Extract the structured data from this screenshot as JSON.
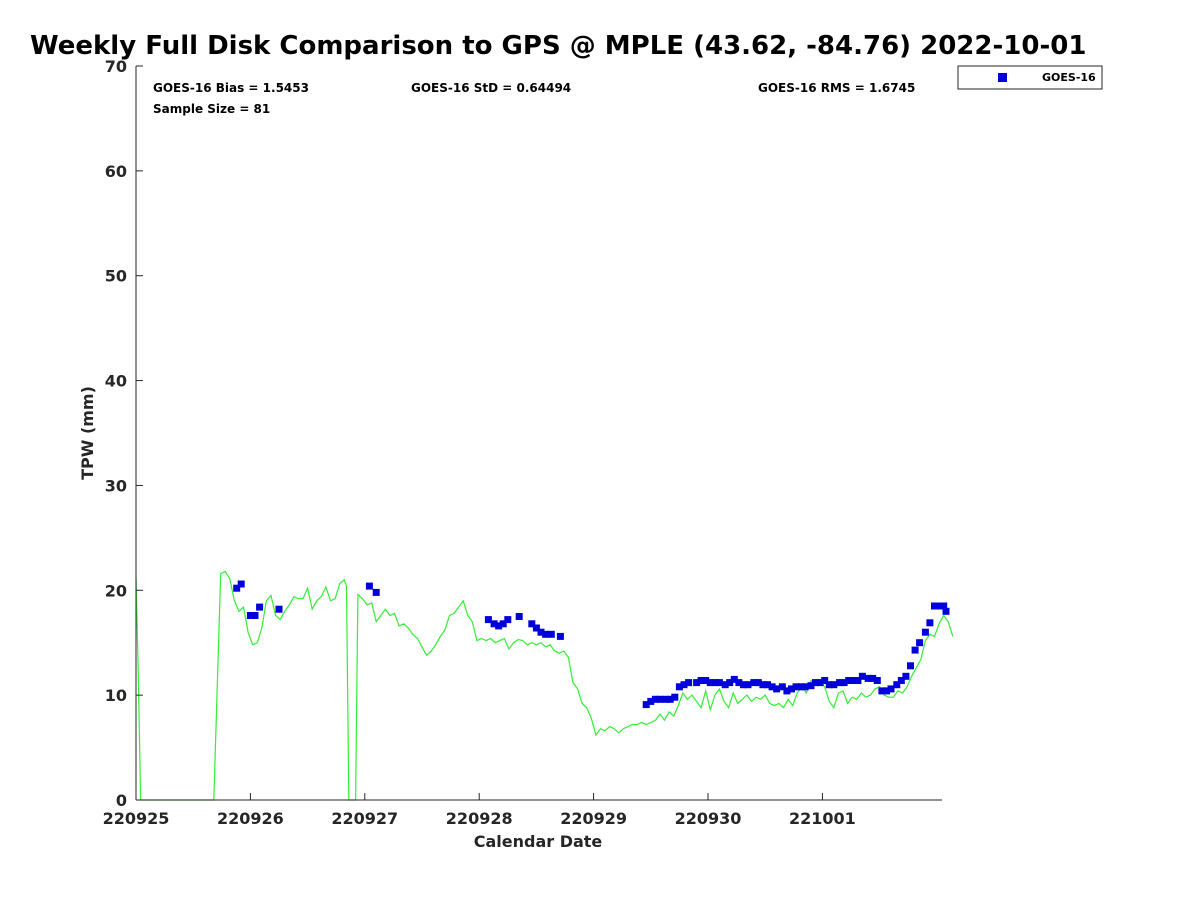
{
  "chart_data": {
    "type": "scatter",
    "title": "Weekly Full Disk Comparison to GPS @ MPLE (43.62, -84.76) 2022-10-01",
    "xlabel": "Calendar Date",
    "ylabel": "TPW (mm)",
    "xlim": [
      0,
      7
    ],
    "ylim": [
      0,
      70
    ],
    "x_tick_labels": [
      "220925",
      "220926",
      "220927",
      "220928",
      "220929",
      "220930",
      "221001"
    ],
    "y_ticks": [
      0,
      10,
      20,
      30,
      40,
      50,
      60,
      70
    ],
    "grid": false,
    "legend_position": "top-right, outside plot area",
    "stats": {
      "bias": "GOES-16 Bias = 1.5453",
      "std": "GOES-16 StD = 0.64494",
      "rms": "GOES-16 RMS = 1.6745",
      "sample": "Sample Size = 81"
    },
    "colors": {
      "goes": "#0000dd",
      "gps": "#33ee33",
      "axis": "#262626"
    },
    "series": [
      {
        "name": "GOES-16",
        "kind": "scatter",
        "marker": "square",
        "points": [
          [
            0.88,
            20.2
          ],
          [
            0.92,
            20.6
          ],
          [
            1.0,
            17.6
          ],
          [
            1.04,
            17.6
          ],
          [
            1.08,
            18.4
          ],
          [
            1.25,
            18.2
          ],
          [
            2.04,
            20.4
          ],
          [
            2.1,
            19.8
          ],
          [
            3.08,
            17.2
          ],
          [
            3.13,
            16.8
          ],
          [
            3.17,
            16.6
          ],
          [
            3.21,
            16.8
          ],
          [
            3.25,
            17.2
          ],
          [
            3.35,
            17.5
          ],
          [
            3.46,
            16.8
          ],
          [
            3.5,
            16.4
          ],
          [
            3.54,
            16.0
          ],
          [
            3.58,
            15.8
          ],
          [
            3.63,
            15.8
          ],
          [
            3.71,
            15.6
          ],
          [
            4.46,
            9.1
          ],
          [
            4.5,
            9.4
          ],
          [
            4.54,
            9.6
          ],
          [
            4.58,
            9.6
          ],
          [
            4.63,
            9.6
          ],
          [
            4.67,
            9.6
          ],
          [
            4.71,
            9.8
          ],
          [
            4.75,
            10.8
          ],
          [
            4.79,
            11.0
          ],
          [
            4.83,
            11.2
          ],
          [
            4.9,
            11.2
          ],
          [
            4.94,
            11.4
          ],
          [
            4.98,
            11.4
          ],
          [
            5.02,
            11.2
          ],
          [
            5.06,
            11.2
          ],
          [
            5.1,
            11.2
          ],
          [
            5.15,
            11.0
          ],
          [
            5.19,
            11.2
          ],
          [
            5.23,
            11.5
          ],
          [
            5.27,
            11.2
          ],
          [
            5.31,
            11.0
          ],
          [
            5.35,
            11.0
          ],
          [
            5.4,
            11.2
          ],
          [
            5.44,
            11.2
          ],
          [
            5.48,
            11.0
          ],
          [
            5.52,
            11.0
          ],
          [
            5.56,
            10.8
          ],
          [
            5.6,
            10.6
          ],
          [
            5.65,
            10.8
          ],
          [
            5.69,
            10.4
          ],
          [
            5.73,
            10.6
          ],
          [
            5.77,
            10.8
          ],
          [
            5.81,
            10.8
          ],
          [
            5.85,
            10.8
          ],
          [
            5.9,
            10.9
          ],
          [
            5.94,
            11.2
          ],
          [
            5.98,
            11.2
          ],
          [
            6.02,
            11.4
          ],
          [
            6.06,
            11.0
          ],
          [
            6.1,
            11.0
          ],
          [
            6.15,
            11.2
          ],
          [
            6.19,
            11.2
          ],
          [
            6.23,
            11.4
          ],
          [
            6.27,
            11.4
          ],
          [
            6.31,
            11.4
          ],
          [
            6.35,
            11.8
          ],
          [
            6.4,
            11.6
          ],
          [
            6.44,
            11.6
          ],
          [
            6.48,
            11.4
          ],
          [
            6.52,
            10.4
          ],
          [
            6.56,
            10.4
          ],
          [
            6.6,
            10.6
          ],
          [
            6.65,
            11.0
          ],
          [
            6.69,
            11.4
          ],
          [
            6.73,
            11.8
          ],
          [
            6.77,
            12.8
          ],
          [
            6.81,
            14.3
          ],
          [
            6.85,
            15.0
          ],
          [
            6.9,
            16.0
          ],
          [
            6.94,
            16.9
          ],
          [
            6.98,
            18.5
          ],
          [
            7.02,
            18.5
          ],
          [
            7.06,
            18.5
          ],
          [
            7.08,
            18.0
          ]
        ]
      },
      {
        "name": "GPS",
        "kind": "line",
        "points": [
          [
            0.0,
            21.3
          ],
          [
            0.02,
            12.0
          ],
          [
            0.04,
            0
          ],
          [
            0.68,
            0
          ],
          [
            0.74,
            21.6
          ],
          [
            0.78,
            21.8
          ],
          [
            0.82,
            21.1
          ],
          [
            0.86,
            19.0
          ],
          [
            0.9,
            18.0
          ],
          [
            0.94,
            18.4
          ],
          [
            0.98,
            16.0
          ],
          [
            1.02,
            14.8
          ],
          [
            1.06,
            15.0
          ],
          [
            1.1,
            16.4
          ],
          [
            1.14,
            19.0
          ],
          [
            1.18,
            19.5
          ],
          [
            1.22,
            17.6
          ],
          [
            1.26,
            17.2
          ],
          [
            1.3,
            18.0
          ],
          [
            1.34,
            18.6
          ],
          [
            1.38,
            19.4
          ],
          [
            1.42,
            19.2
          ],
          [
            1.46,
            19.2
          ],
          [
            1.5,
            20.2
          ],
          [
            1.54,
            18.2
          ],
          [
            1.58,
            19.0
          ],
          [
            1.62,
            19.4
          ],
          [
            1.66,
            20.3
          ],
          [
            1.7,
            19.0
          ],
          [
            1.74,
            19.2
          ],
          [
            1.78,
            20.6
          ],
          [
            1.82,
            21.0
          ],
          [
            1.84,
            20.4
          ],
          [
            1.86,
            0
          ],
          [
            1.92,
            0
          ],
          [
            1.94,
            19.6
          ],
          [
            1.98,
            19.2
          ],
          [
            2.02,
            18.6
          ],
          [
            2.06,
            18.8
          ],
          [
            2.1,
            17.0
          ],
          [
            2.14,
            17.6
          ],
          [
            2.18,
            18.2
          ],
          [
            2.22,
            17.6
          ],
          [
            2.26,
            17.8
          ],
          [
            2.3,
            16.6
          ],
          [
            2.34,
            16.8
          ],
          [
            2.38,
            16.4
          ],
          [
            2.42,
            15.8
          ],
          [
            2.46,
            15.4
          ],
          [
            2.5,
            14.6
          ],
          [
            2.54,
            13.8
          ],
          [
            2.58,
            14.2
          ],
          [
            2.62,
            14.8
          ],
          [
            2.66,
            15.6
          ],
          [
            2.7,
            16.2
          ],
          [
            2.74,
            17.6
          ],
          [
            2.78,
            17.8
          ],
          [
            2.82,
            18.4
          ],
          [
            2.86,
            19.0
          ],
          [
            2.9,
            17.6
          ],
          [
            2.94,
            17.0
          ],
          [
            2.98,
            15.2
          ],
          [
            3.02,
            15.4
          ],
          [
            3.06,
            15.2
          ],
          [
            3.1,
            15.4
          ],
          [
            3.14,
            15.0
          ],
          [
            3.18,
            15.2
          ],
          [
            3.22,
            15.4
          ],
          [
            3.26,
            14.4
          ],
          [
            3.3,
            15.0
          ],
          [
            3.34,
            15.3
          ],
          [
            3.38,
            15.2
          ],
          [
            3.42,
            14.8
          ],
          [
            3.46,
            15.0
          ],
          [
            3.5,
            14.8
          ],
          [
            3.54,
            15.0
          ],
          [
            3.58,
            14.6
          ],
          [
            3.62,
            14.8
          ],
          [
            3.66,
            14.2
          ],
          [
            3.7,
            14.0
          ],
          [
            3.74,
            14.2
          ],
          [
            3.78,
            13.6
          ],
          [
            3.82,
            11.2
          ],
          [
            3.86,
            10.6
          ],
          [
            3.9,
            9.2
          ],
          [
            3.94,
            8.8
          ],
          [
            3.98,
            7.8
          ],
          [
            4.02,
            6.2
          ],
          [
            4.06,
            6.8
          ],
          [
            4.1,
            6.6
          ],
          [
            4.14,
            7.0
          ],
          [
            4.18,
            6.8
          ],
          [
            4.22,
            6.4
          ],
          [
            4.26,
            6.8
          ],
          [
            4.3,
            7.0
          ],
          [
            4.34,
            7.2
          ],
          [
            4.38,
            7.2
          ],
          [
            4.42,
            7.4
          ],
          [
            4.46,
            7.2
          ],
          [
            4.5,
            7.4
          ],
          [
            4.54,
            7.6
          ],
          [
            4.58,
            8.2
          ],
          [
            4.62,
            7.6
          ],
          [
            4.66,
            8.4
          ],
          [
            4.7,
            8.0
          ],
          [
            4.74,
            9.0
          ],
          [
            4.78,
            10.2
          ],
          [
            4.82,
            9.6
          ],
          [
            4.86,
            10.0
          ],
          [
            4.9,
            9.4
          ],
          [
            4.94,
            8.8
          ],
          [
            4.98,
            10.4
          ],
          [
            5.02,
            8.6
          ],
          [
            5.06,
            10.0
          ],
          [
            5.1,
            10.6
          ],
          [
            5.14,
            9.4
          ],
          [
            5.18,
            8.8
          ],
          [
            5.22,
            10.2
          ],
          [
            5.26,
            9.2
          ],
          [
            5.3,
            9.6
          ],
          [
            5.34,
            10.0
          ],
          [
            5.38,
            9.4
          ],
          [
            5.42,
            9.8
          ],
          [
            5.46,
            9.6
          ],
          [
            5.5,
            10.0
          ],
          [
            5.54,
            9.2
          ],
          [
            5.58,
            9.0
          ],
          [
            5.62,
            9.2
          ],
          [
            5.66,
            8.8
          ],
          [
            5.7,
            9.6
          ],
          [
            5.74,
            9.0
          ],
          [
            5.78,
            10.2
          ],
          [
            5.82,
            10.8
          ],
          [
            5.86,
            10.2
          ],
          [
            5.9,
            11.4
          ],
          [
            5.94,
            11.0
          ],
          [
            5.98,
            11.2
          ],
          [
            6.02,
            10.8
          ],
          [
            6.06,
            9.4
          ],
          [
            6.1,
            8.8
          ],
          [
            6.14,
            10.2
          ],
          [
            6.18,
            10.4
          ],
          [
            6.22,
            9.2
          ],
          [
            6.26,
            9.8
          ],
          [
            6.3,
            9.6
          ],
          [
            6.34,
            10.2
          ],
          [
            6.38,
            9.8
          ],
          [
            6.42,
            10.0
          ],
          [
            6.46,
            10.6
          ],
          [
            6.5,
            10.8
          ],
          [
            6.54,
            10.0
          ],
          [
            6.58,
            9.8
          ],
          [
            6.62,
            9.8
          ],
          [
            6.66,
            10.4
          ],
          [
            6.7,
            10.2
          ],
          [
            6.74,
            10.8
          ],
          [
            6.78,
            11.8
          ],
          [
            6.82,
            12.6
          ],
          [
            6.86,
            13.4
          ],
          [
            6.9,
            15.2
          ],
          [
            6.94,
            15.8
          ],
          [
            6.98,
            15.6
          ],
          [
            7.02,
            16.8
          ],
          [
            7.06,
            17.6
          ],
          [
            7.1,
            17.0
          ],
          [
            7.14,
            15.6
          ]
        ]
      }
    ]
  }
}
